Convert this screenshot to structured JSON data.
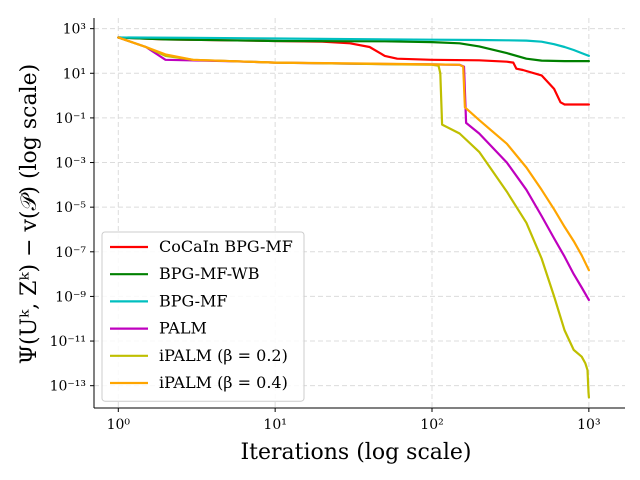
{
  "chart_data": {
    "type": "line",
    "title": "",
    "xlabel": "Iterations (log scale)",
    "ylabel": "Ψ(Uᵏ, Zᵏ) − v(𝒫) (log scale)",
    "xscale": "log",
    "yscale": "log",
    "xlim": [
      0.7,
      1700
    ],
    "ylim": [
      1e-14,
      3000
    ],
    "x_ticks": [
      {
        "value": 1,
        "label": "10⁰"
      },
      {
        "value": 10,
        "label": "10¹"
      },
      {
        "value": 100,
        "label": "10²"
      },
      {
        "value": 1000,
        "label": "10³"
      }
    ],
    "y_ticks": [
      {
        "value": 1000,
        "label": "10³"
      },
      {
        "value": 10,
        "label": "10¹"
      },
      {
        "value": 0.1,
        "label": "10⁻¹"
      },
      {
        "value": 0.001,
        "label": "10⁻³"
      },
      {
        "value": 1e-05,
        "label": "10⁻⁵"
      },
      {
        "value": 1e-07,
        "label": "10⁻⁷"
      },
      {
        "value": 1e-09,
        "label": "10⁻⁹"
      },
      {
        "value": 1e-11,
        "label": "10⁻¹¹"
      },
      {
        "value": 1e-13,
        "label": "10⁻¹³"
      }
    ],
    "grid": true,
    "legend_position": "lower-left",
    "series": [
      {
        "name": "CoCaIn BPG-MF",
        "color": "#ff0000",
        "points": [
          [
            1,
            400
          ],
          [
            2,
            330
          ],
          [
            5,
            300
          ],
          [
            10,
            280
          ],
          [
            20,
            260
          ],
          [
            30,
            220
          ],
          [
            40,
            150
          ],
          [
            50,
            60
          ],
          [
            60,
            45
          ],
          [
            100,
            40
          ],
          [
            200,
            38
          ],
          [
            300,
            33
          ],
          [
            330,
            30
          ],
          [
            345,
            16
          ],
          [
            380,
            14
          ],
          [
            500,
            8
          ],
          [
            600,
            2
          ],
          [
            660,
            0.5
          ],
          [
            700,
            0.4
          ],
          [
            1000,
            0.4
          ]
        ]
      },
      {
        "name": "BPG-MF-WB",
        "color": "#008000",
        "points": [
          [
            1,
            400
          ],
          [
            2,
            330
          ],
          [
            5,
            300
          ],
          [
            10,
            280
          ],
          [
            50,
            270
          ],
          [
            100,
            250
          ],
          [
            150,
            220
          ],
          [
            200,
            160
          ],
          [
            300,
            80
          ],
          [
            400,
            45
          ],
          [
            500,
            37
          ],
          [
            700,
            35
          ],
          [
            1000,
            35
          ]
        ]
      },
      {
        "name": "BPG-MF",
        "color": "#00bfbf",
        "points": [
          [
            1,
            400
          ],
          [
            3,
            390
          ],
          [
            10,
            360
          ],
          [
            30,
            340
          ],
          [
            100,
            320
          ],
          [
            200,
            310
          ],
          [
            300,
            300
          ],
          [
            400,
            290
          ],
          [
            500,
            260
          ],
          [
            600,
            200
          ],
          [
            700,
            150
          ],
          [
            800,
            110
          ],
          [
            900,
            80
          ],
          [
            1000,
            60
          ]
        ]
      },
      {
        "name": "PALM",
        "color": "#bf00bf",
        "points": [
          [
            1,
            400
          ],
          [
            1.5,
            150
          ],
          [
            2,
            40
          ],
          [
            5,
            35
          ],
          [
            10,
            30
          ],
          [
            30,
            27
          ],
          [
            100,
            25
          ],
          [
            150,
            24
          ],
          [
            160,
            20
          ],
          [
            165,
            0.06
          ],
          [
            200,
            0.02
          ],
          [
            300,
            0.001
          ],
          [
            400,
            6e-05
          ],
          [
            500,
            4e-06
          ],
          [
            600,
            4e-07
          ],
          [
            700,
            6e-08
          ],
          [
            800,
            1e-08
          ],
          [
            900,
            2.5e-09
          ],
          [
            1000,
            7e-10
          ]
        ]
      },
      {
        "name": "iPALM (β = 0.2)",
        "color": "#bfbf00",
        "points": [
          [
            1,
            400
          ],
          [
            1.5,
            150
          ],
          [
            2,
            60
          ],
          [
            3,
            40
          ],
          [
            10,
            30
          ],
          [
            30,
            27
          ],
          [
            100,
            24
          ],
          [
            110,
            22
          ],
          [
            113,
            10
          ],
          [
            116,
            0.05
          ],
          [
            150,
            0.02
          ],
          [
            200,
            0.003
          ],
          [
            300,
            5e-05
          ],
          [
            400,
            2e-06
          ],
          [
            500,
            5e-08
          ],
          [
            600,
            1e-09
          ],
          [
            700,
            3e-11
          ],
          [
            800,
            4e-12
          ],
          [
            900,
            2e-12
          ],
          [
            950,
            1e-12
          ],
          [
            980,
            5e-13
          ],
          [
            995,
            5e-14
          ],
          [
            1000,
            3e-14
          ]
        ]
      },
      {
        "name": "iPALM (β = 0.4)",
        "color": "#ffa500",
        "points": [
          [
            1,
            400
          ],
          [
            1.5,
            150
          ],
          [
            2,
            70
          ],
          [
            3,
            40
          ],
          [
            10,
            30
          ],
          [
            30,
            28
          ],
          [
            100,
            25
          ],
          [
            150,
            24
          ],
          [
            158,
            20
          ],
          [
            162,
            0.3
          ],
          [
            200,
            0.08
          ],
          [
            300,
            0.007
          ],
          [
            400,
            0.0006
          ],
          [
            500,
            6e-05
          ],
          [
            600,
            8e-06
          ],
          [
            700,
            1.3e-06
          ],
          [
            800,
            3e-07
          ],
          [
            900,
            7e-08
          ],
          [
            1000,
            1.5e-08
          ]
        ]
      }
    ]
  }
}
